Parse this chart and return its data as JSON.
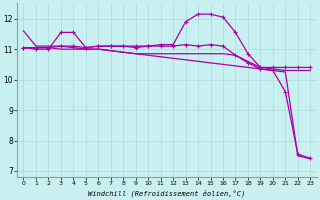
{
  "xlabel": "Windchill (Refroidissement éolien,°C)",
  "background_color": "#c8f0f0",
  "grid_color": "#b0d8d8",
  "line_color": "#aa00aa",
  "x_ticks": [
    0,
    1,
    2,
    3,
    4,
    5,
    6,
    7,
    8,
    9,
    10,
    11,
    12,
    13,
    14,
    15,
    16,
    17,
    18,
    19,
    20,
    21,
    22,
    23
  ],
  "ylim": [
    6.8,
    12.5
  ],
  "xlim": [
    -0.5,
    23.5
  ],
  "yticks": [
    7,
    8,
    9,
    10,
    11,
    12
  ],
  "series": {
    "line1_no_marker": [
      11.6,
      11.1,
      11.1,
      11.1,
      11.05,
      11.0,
      11.0,
      10.95,
      10.9,
      10.85,
      10.8,
      10.75,
      10.7,
      10.65,
      10.6,
      10.55,
      10.5,
      10.45,
      10.4,
      10.35,
      10.3,
      10.25,
      7.5,
      7.4
    ],
    "line2_marker": [
      11.05,
      11.05,
      11.05,
      11.1,
      11.1,
      11.05,
      11.1,
      11.1,
      11.1,
      11.1,
      11.1,
      11.1,
      11.1,
      11.15,
      11.1,
      11.15,
      11.1,
      10.8,
      10.55,
      10.35,
      10.3,
      9.6,
      7.55,
      7.42
    ],
    "line3_no_marker": [
      11.05,
      11.05,
      11.05,
      11.0,
      11.0,
      11.0,
      11.0,
      10.95,
      10.9,
      10.85,
      10.85,
      10.85,
      10.85,
      10.85,
      10.85,
      10.85,
      10.85,
      10.8,
      10.6,
      10.4,
      10.35,
      10.3,
      10.3,
      10.3
    ],
    "line4_marker": [
      11.05,
      11.0,
      11.0,
      11.55,
      11.55,
      11.05,
      11.1,
      11.1,
      11.1,
      11.05,
      11.1,
      11.15,
      11.15,
      11.9,
      12.15,
      12.15,
      12.05,
      11.55,
      10.85,
      10.4,
      10.4,
      10.4,
      10.4,
      10.4
    ]
  }
}
